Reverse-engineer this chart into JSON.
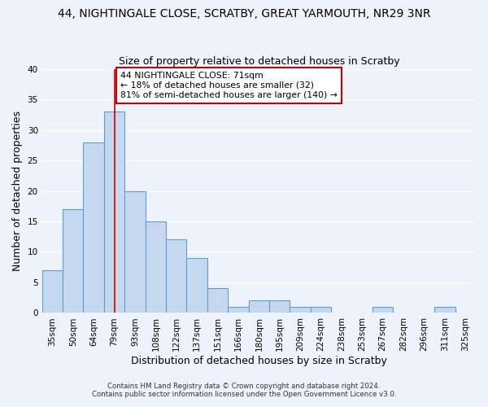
{
  "title": "44, NIGHTINGALE CLOSE, SCRATBY, GREAT YARMOUTH, NR29 3NR",
  "subtitle": "Size of property relative to detached houses in Scratby",
  "xlabel": "Distribution of detached houses by size in Scratby",
  "ylabel": "Number of detached properties",
  "bar_labels": [
    "35sqm",
    "50sqm",
    "64sqm",
    "79sqm",
    "93sqm",
    "108sqm",
    "122sqm",
    "137sqm",
    "151sqm",
    "166sqm",
    "180sqm",
    "195sqm",
    "209sqm",
    "224sqm",
    "238sqm",
    "253sqm",
    "267sqm",
    "282sqm",
    "296sqm",
    "311sqm",
    "325sqm"
  ],
  "bar_values": [
    7,
    17,
    28,
    33,
    20,
    15,
    12,
    9,
    4,
    1,
    2,
    2,
    1,
    1,
    0,
    0,
    1,
    0,
    0,
    1,
    0
  ],
  "bar_color": "#c5d8f0",
  "bar_edge_color": "#5a9fd4",
  "ylim": [
    0,
    40
  ],
  "yticks": [
    0,
    5,
    10,
    15,
    20,
    25,
    30,
    35,
    40
  ],
  "vline_x": 3.0,
  "vline_color": "#cc0000",
  "annotation_lines": [
    "44 NIGHTINGALE CLOSE: 71sqm",
    "← 18% of detached houses are smaller (32)",
    "81% of semi-detached houses are larger (140) →"
  ],
  "annotation_box_color": "#ffffff",
  "annotation_box_edge": "#cc0000",
  "footnote1": "Contains HM Land Registry data © Crown copyright and database right 2024.",
  "footnote2": "Contains public sector information licensed under the Open Government Licence v3.0.",
  "bg_color": "#eef2fa",
  "grid_color": "#ffffff",
  "title_fontsize": 10,
  "subtitle_fontsize": 9,
  "axis_label_fontsize": 9,
  "tick_fontsize": 7.5
}
